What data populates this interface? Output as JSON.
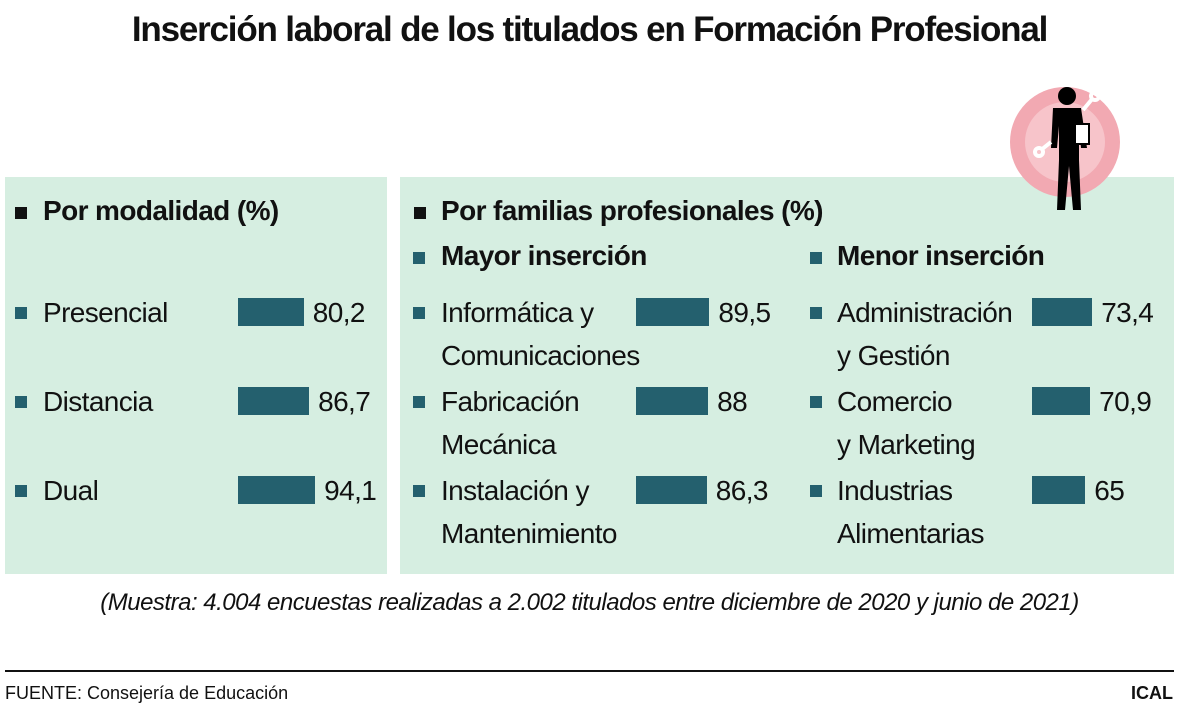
{
  "title": "Inserción laboral de los titulados en Formación Profesional",
  "section_title": "Por familias profesionales (%)",
  "chart_data": [
    {
      "type": "bar",
      "title": "Por modalidad (%)",
      "categories": [
        "Presencial",
        "Distancia",
        "Dual"
      ],
      "values": [
        80.2,
        86.7,
        94.1
      ],
      "value_labels": [
        "80,2",
        "86,7",
        "94,1"
      ],
      "color": "#24606e"
    },
    {
      "type": "bar",
      "title": "Mayor inserción",
      "categories": [
        "Informática y\nComunicaciones",
        "Fabricación\nMecánica",
        "Instalación y\nMantenimiento"
      ],
      "values": [
        89.5,
        88,
        86.3
      ],
      "value_labels": [
        "89,5",
        "88",
        "86,3"
      ],
      "color": "#24606e"
    },
    {
      "type": "bar",
      "title": "Menor inserción",
      "categories": [
        "Administración\ny Gestión",
        "Comercio\ny Marketing",
        "Industrias\nAlimentarias"
      ],
      "values": [
        73.4,
        70.9,
        65
      ],
      "value_labels": [
        "73,4",
        "70,9",
        "65"
      ],
      "color": "#24606e"
    }
  ],
  "note": "(Muestra: 4.004 encuestas realizadas a 2.002 titulados entre diciembre de 2020 y junio de 2021)",
  "source": "FUENTE: Consejería de Educación",
  "credit": "ICAL"
}
